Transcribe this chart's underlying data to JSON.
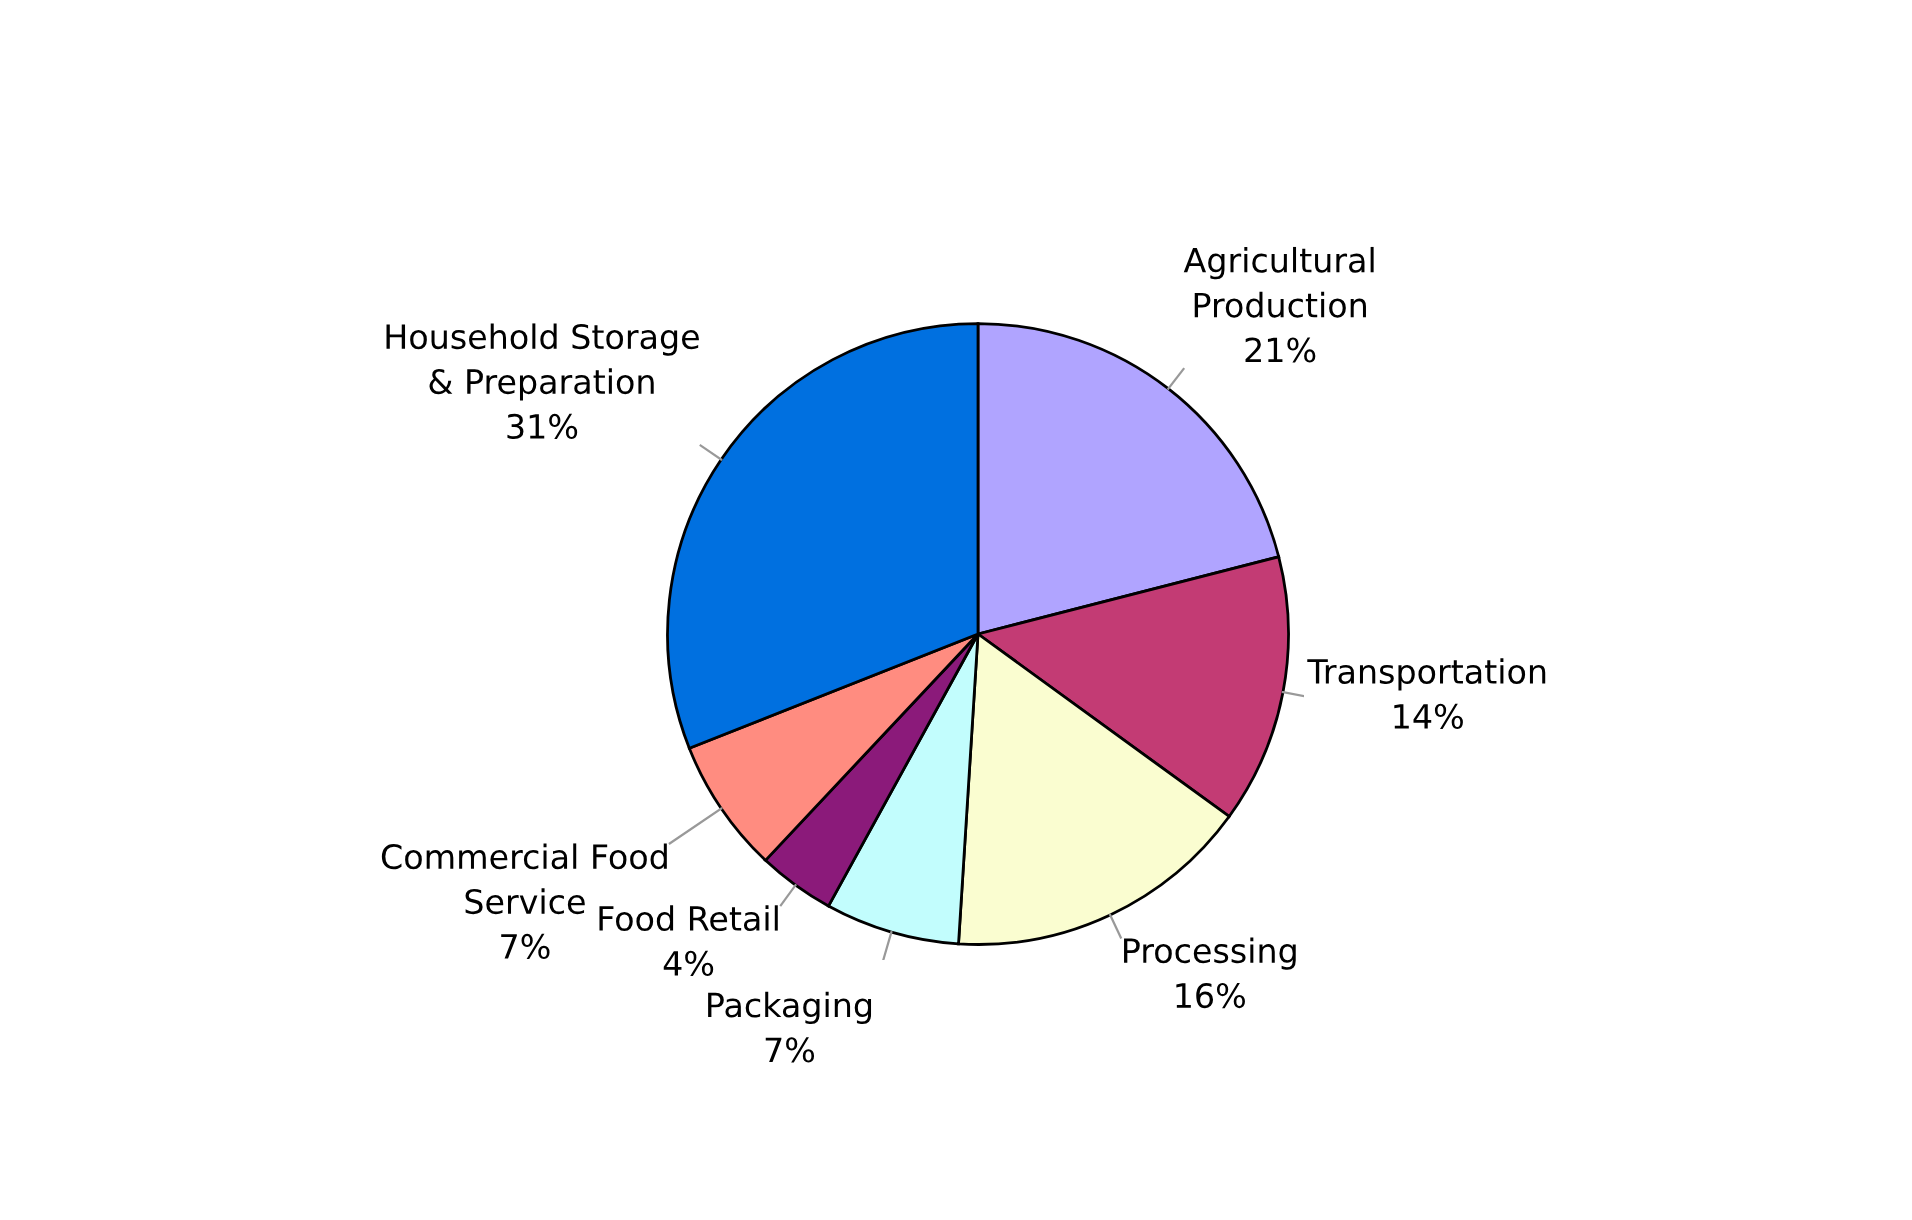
{
  "chart_data": {
    "type": "pie",
    "categories": [
      "Agricultural\nProduction",
      "Transportation",
      "Processing",
      "Packaging",
      "Food Retail",
      "Commercial Food\nService",
      "Household Storage\n& Preparation"
    ],
    "values": [
      21,
      14,
      16,
      7,
      4,
      7,
      31
    ],
    "colors": [
      "#b0a4ff",
      "#c33b74",
      "#fafdd0",
      "#c2fdfd",
      "#8b1a7a",
      "#ff8c80",
      "#0070e0"
    ],
    "value_labels": [
      "21%",
      "14%",
      "16%",
      "7%",
      "4%",
      "7%",
      "31%"
    ],
    "legend": false
  }
}
